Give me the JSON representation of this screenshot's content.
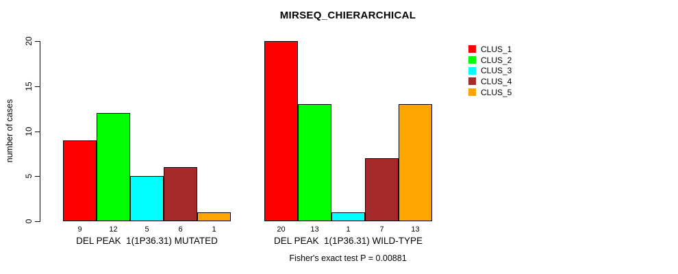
{
  "title": "MIRSEQ_CHIERARCHICAL",
  "footer": "Fisher's exact test P = 0.00881",
  "chart_data": {
    "type": "bar",
    "title": "MIRSEQ_CHIERARCHICAL",
    "xlabel": "",
    "ylabel": "number of cases",
    "ylim": [
      0,
      20
    ],
    "yticks": [
      0,
      5,
      10,
      15,
      20
    ],
    "grid": false,
    "legend_position": "right",
    "annotation": "Fisher's exact test P = 0.00881",
    "series": [
      {
        "name": "CLUS_1",
        "color": "#FF0000"
      },
      {
        "name": "CLUS_2",
        "color": "#00FF00"
      },
      {
        "name": "CLUS_3",
        "color": "#00FFFF"
      },
      {
        "name": "CLUS_4",
        "color": "#A52A2A"
      },
      {
        "name": "CLUS_5",
        "color": "#FFA500"
      }
    ],
    "groups": [
      {
        "label": "DEL PEAK  1(1P36.31) MUTATED",
        "values": [
          9,
          12,
          5,
          6,
          1
        ]
      },
      {
        "label": "DEL PEAK  1(1P36.31) WILD-TYPE",
        "values": [
          20,
          13,
          1,
          7,
          13
        ]
      }
    ]
  }
}
